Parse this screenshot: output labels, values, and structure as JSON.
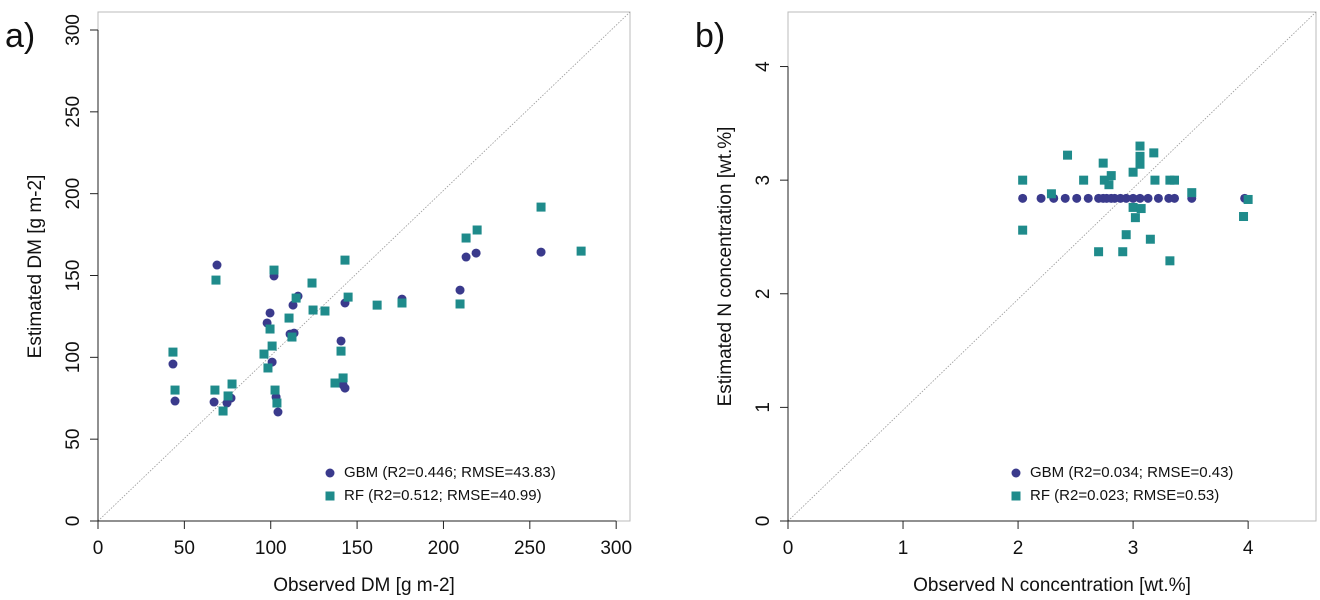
{
  "chart_data": [
    {
      "type": "scatter",
      "panel": "a)",
      "x_label": "Observed DM [g m-2]",
      "y_label": "Estimated DM [g m-2]",
      "xlim": [
        0,
        308
      ],
      "ylim": [
        0,
        311
      ],
      "xticks": [
        0,
        50,
        100,
        150,
        200,
        250,
        300
      ],
      "yticks": [
        0,
        50,
        100,
        150,
        200,
        250,
        300
      ],
      "legend": "bottomright",
      "series": [
        {
          "name": "GBM (R2=0.446; RMSE=43.83)",
          "color": "#3a3a8c",
          "marker": "circle",
          "x": [
            43.4,
            44.6,
            67.2,
            68.9,
            74.7,
            77.0,
            97.9,
            99.6,
            100.8,
            101.9,
            103.1,
            104.2,
            111.2,
            112.9,
            113.5,
            115.8,
            140.7,
            141.9,
            143.0,
            143.0,
            176.0,
            209.6,
            213.1,
            218.9,
            256.5
          ],
          "y": [
            95.9,
            73.3,
            72.7,
            156.4,
            72.1,
            75.1,
            121.0,
            127.1,
            97.1,
            149.7,
            75.7,
            66.6,
            114.2,
            131.9,
            114.8,
            137.4,
            110.0,
            83.1,
            81.2,
            133.2,
            135.6,
            141.1,
            161.3,
            163.7,
            164.3
          ]
        },
        {
          "name": "RF (R2=0.512; RMSE=40.99)",
          "color": "#1f8b8b",
          "marker": "square",
          "x": [
            43.4,
            44.6,
            67.7,
            68.3,
            72.4,
            75.3,
            77.6,
            96.1,
            98.4,
            99.6,
            100.8,
            101.9,
            102.5,
            103.6,
            110.6,
            112.3,
            114.7,
            123.9,
            124.5,
            131.4,
            137.2,
            140.7,
            141.9,
            143.0,
            144.8,
            161.6,
            176.0,
            209.6,
            213.1,
            219.5,
            256.5,
            279.7
          ],
          "y": [
            103.2,
            80.0,
            80.0,
            147.2,
            67.2,
            76.4,
            83.7,
            102.0,
            93.5,
            117.3,
            106.9,
            153.3,
            80.0,
            72.1,
            124.0,
            112.4,
            136.2,
            145.4,
            128.9,
            128.3,
            84.3,
            103.8,
            87.4,
            159.4,
            136.8,
            131.9,
            133.2,
            132.6,
            172.9,
            177.8,
            191.8,
            164.9
          ]
        }
      ]
    },
    {
      "type": "scatter",
      "panel": "b)",
      "x_label": "Observed N concentration [wt.%]",
      "y_label": "Estimated N concentration [wt.%]",
      "xlim": [
        0,
        4.59
      ],
      "ylim": [
        0,
        4.48
      ],
      "xticks": [
        0,
        1,
        2,
        3,
        4
      ],
      "yticks": [
        0,
        1,
        2,
        3,
        4
      ],
      "legend": "bottomright",
      "series": [
        {
          "name": "GBM (R2=0.034; RMSE=0.43)",
          "color": "#3a3a8c",
          "marker": "circle",
          "x": [
            2.04,
            2.2,
            2.31,
            2.41,
            2.51,
            2.61,
            2.7,
            2.74,
            2.77,
            2.81,
            2.84,
            2.89,
            2.94,
            3.0,
            3.06,
            3.13,
            3.22,
            3.31,
            3.36,
            3.51,
            3.97
          ],
          "y": [
            2.84,
            2.84,
            2.84,
            2.84,
            2.84,
            2.84,
            2.84,
            2.84,
            2.84,
            2.84,
            2.84,
            2.84,
            2.84,
            2.84,
            2.84,
            2.84,
            2.84,
            2.84,
            2.84,
            2.84,
            2.84
          ]
        },
        {
          "name": "RF (R2=0.023; RMSE=0.53)",
          "color": "#1f8b8b",
          "marker": "square",
          "x": [
            2.04,
            2.04,
            2.29,
            2.43,
            2.57,
            2.7,
            2.74,
            2.75,
            2.79,
            2.81,
            2.91,
            2.94,
            3.0,
            3.0,
            3.02,
            3.06,
            3.06,
            3.06,
            3.07,
            3.15,
            3.18,
            3.19,
            3.32,
            3.32,
            3.36,
            3.51,
            3.96,
            4.0
          ],
          "y": [
            3.0,
            2.56,
            2.88,
            3.22,
            3.0,
            2.37,
            3.15,
            3.0,
            2.96,
            3.04,
            2.37,
            2.52,
            3.07,
            2.76,
            2.67,
            3.3,
            3.21,
            3.14,
            2.75,
            2.48,
            3.24,
            3.0,
            2.29,
            3.0,
            3.0,
            2.89,
            2.68,
            2.83
          ]
        }
      ]
    }
  ]
}
